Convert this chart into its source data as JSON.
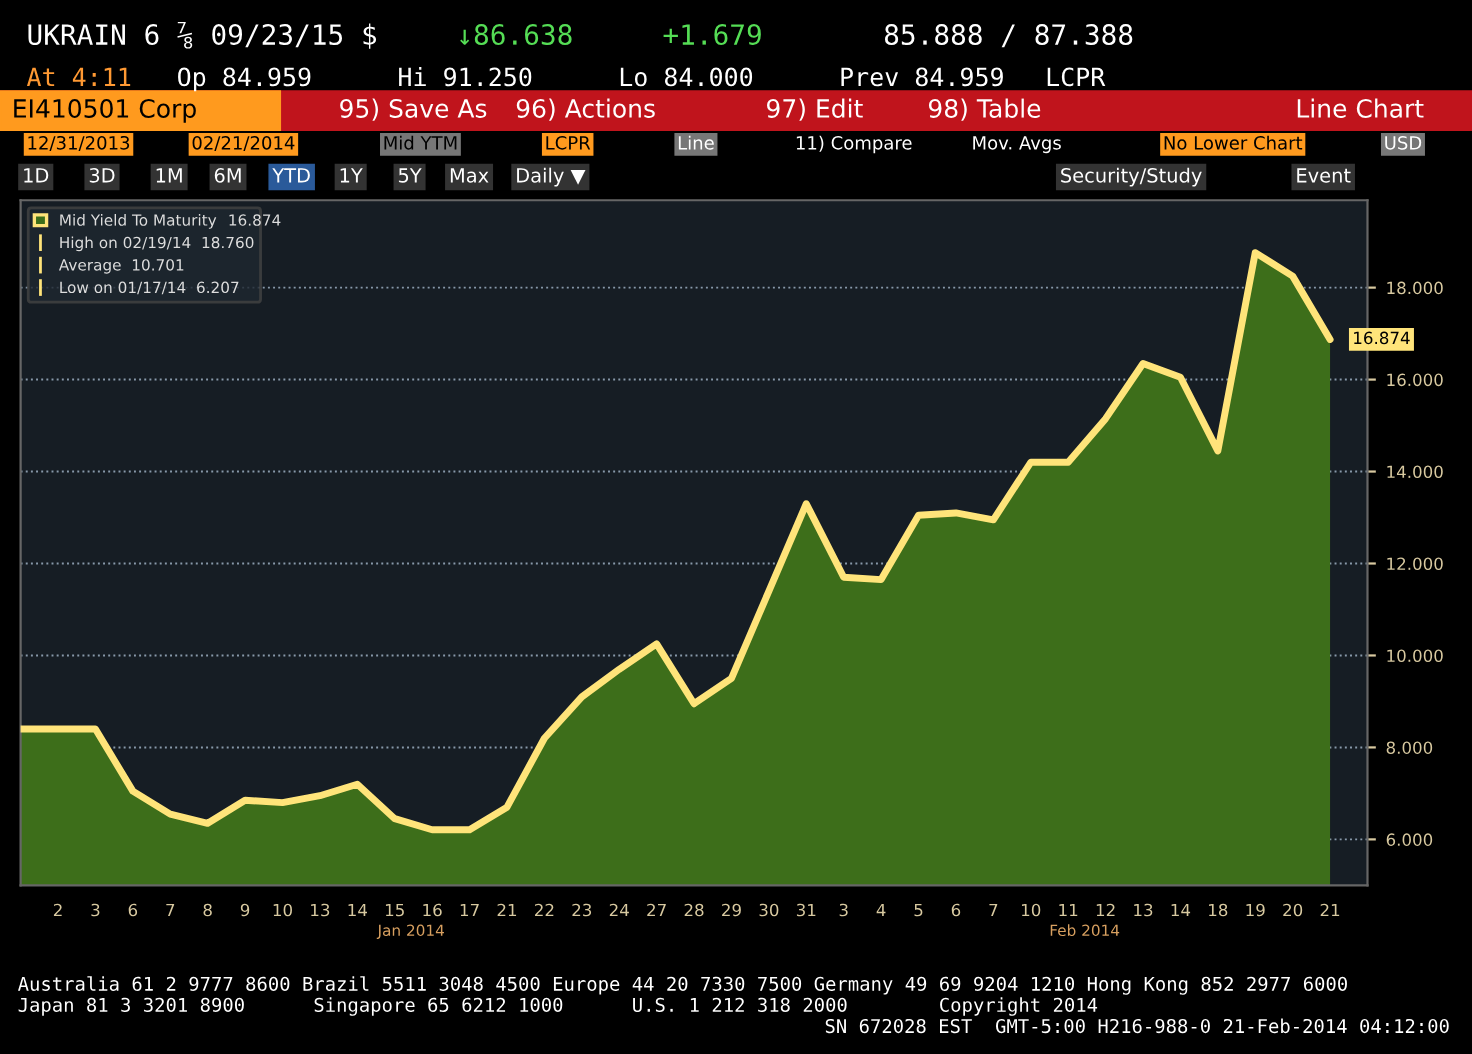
{
  "chart_data": {
    "type": "area",
    "categories": [
      null,
      "2",
      "3",
      "6",
      "7",
      "8",
      "9",
      "10",
      "13",
      "14",
      "15",
      "16",
      "17",
      "21",
      "22",
      "23",
      "24",
      "27",
      "28",
      "29",
      "30",
      "31",
      "3",
      "4",
      "5",
      "6",
      "7",
      "10",
      "11",
      "12",
      "13",
      "14",
      "18",
      "19",
      "20",
      "21"
    ],
    "series": [
      {
        "name": "Mid Yield To Maturity",
        "color": "#3d6e1a",
        "values": [
          8.4,
          8.4,
          8.4,
          7.05,
          6.55,
          6.35,
          6.85,
          6.8,
          6.95,
          7.2,
          6.45,
          6.21,
          6.21,
          6.7,
          8.2,
          9.1,
          9.7,
          10.25,
          8.95,
          9.5,
          11.4,
          13.3,
          11.7,
          11.65,
          13.05,
          13.1,
          12.95,
          14.2,
          14.2,
          15.15,
          16.35,
          16.05,
          14.45,
          18.76,
          18.25,
          16.874
        ],
        "value_labels": [
          null,
          null,
          null,
          null,
          null,
          null,
          null,
          null,
          null,
          null,
          null,
          null,
          null,
          null,
          null,
          null,
          null,
          null,
          null,
          null,
          null,
          null,
          null,
          null,
          null,
          null,
          null,
          null,
          null,
          null,
          null,
          null,
          null,
          null,
          null,
          "16.874"
        ]
      }
    ],
    "ylim": [
      5,
      19.9
    ],
    "yticks": [
      {
        "value": 6,
        "label": "6.000"
      },
      {
        "value": 8,
        "label": "8.000"
      },
      {
        "value": 10,
        "label": "10.000"
      },
      {
        "value": 12,
        "label": "12.000"
      },
      {
        "value": 14,
        "label": "14.000"
      },
      {
        "value": 16,
        "label": "16.000"
      },
      {
        "value": 18,
        "label": "18.000"
      }
    ],
    "grid": "y",
    "legend": "top left",
    "annotations": [
      "UKRAIN 6 ⅞ 09/23/15 $",
      "↓86.638",
      "+1.679",
      "85.888 / 87.388",
      "At 4:11",
      "Op 84.959",
      "Hi 91.250",
      "Lo 84.000",
      "Prev 84.959",
      "LCPR",
      "EI410501 Corp",
      "95) Save As",
      "96) Actions",
      "97) Edit",
      "98) Table",
      "Line Chart",
      "12/31/2013",
      "02/21/2014",
      "Mid YTM",
      "LCPR",
      "Line",
      "11) Compare",
      "Mov. Avgs",
      "No Lower Chart",
      "USD",
      "1D",
      "3D",
      "1M",
      "6M",
      "YTD",
      "1Y",
      "5Y",
      "Max",
      "Daily ▼",
      "Security/Study",
      "Event",
      "16.874",
      "High on 02/19/14",
      "18.760",
      "Average",
      "10.701",
      "Low on 01/17/14",
      "6.207",
      "Jan 2014",
      "Feb 2014",
      "Australia 61 2 9777 8600 Brazil 5511 3048 4500 Europe 44 20 7330 7500 Germany 49 69 9204 1210 Hong Kong 852 2977 6000",
      "Japan 81 3 3201 8900      Singapore 65 6212 1000      U.S. 1 212 318 2000        Copyright 2014",
      "SN 672028 EST  GMT-5:00 H216-988-0 21-Feb-2014 04:12:00"
    ]
  }
}
